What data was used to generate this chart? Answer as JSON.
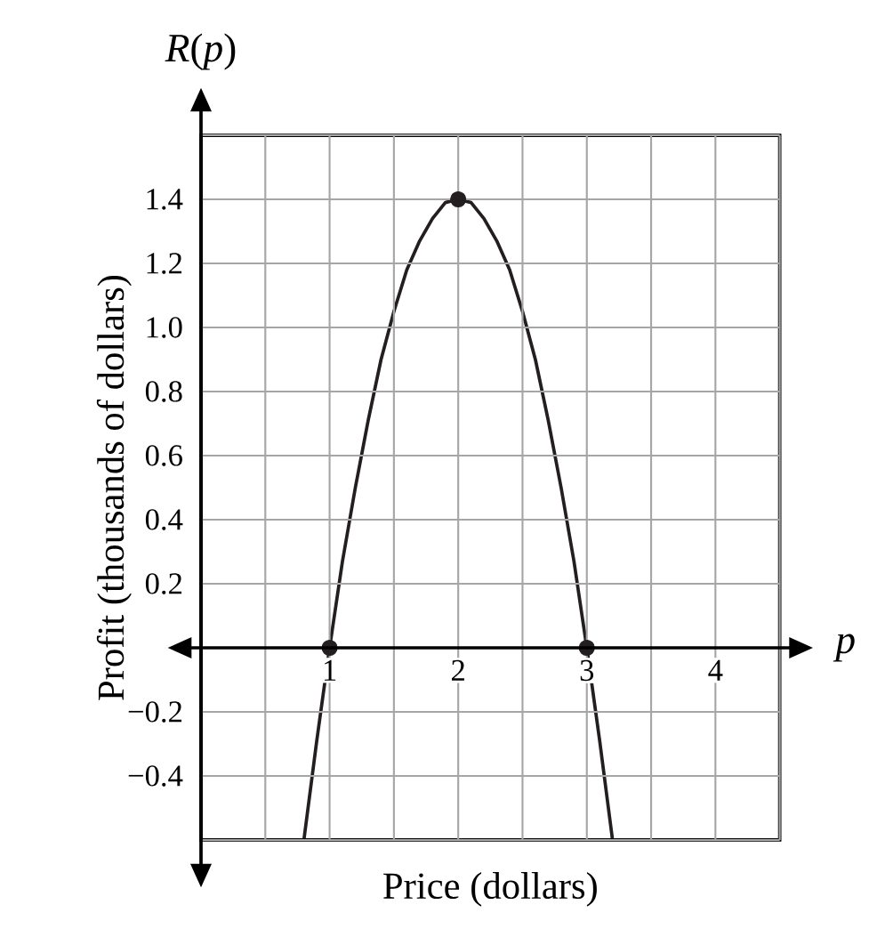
{
  "chart_data": {
    "type": "line",
    "xlabel": "Price (dollars)",
    "ylabel": "Profit (thousands of dollars)",
    "annotations": [
      "*R*(*p*)",
      "p"
    ],
    "xlim": [
      0,
      4.5
    ],
    "ylim": [
      -0.6,
      1.6
    ],
    "xticks": [
      {
        "value": 0,
        "label": null
      },
      {
        "value": 0.5,
        "label": null
      },
      1,
      {
        "value": 1.5,
        "label": null
      },
      2,
      {
        "value": 2.5,
        "label": null
      },
      3,
      {
        "value": 3.5,
        "label": null
      },
      4,
      {
        "value": 4.5,
        "label": null
      }
    ],
    "yticks": [
      {
        "value": -0.6,
        "label": null
      },
      {
        "value": -0.4,
        "label": "−0.4"
      },
      {
        "value": -0.2,
        "label": "−0.2"
      },
      0.2,
      0.4,
      0.6,
      0.8,
      "1.0",
      1.2,
      1.4,
      {
        "value": 1.6,
        "label": null
      }
    ],
    "grid": true,
    "series": [
      {
        "color": "#231f20",
        "marker": "none",
        "x": [
          0.8,
          0.9,
          1.0,
          1.1,
          1.2,
          1.3,
          1.4,
          1.5,
          1.6,
          1.7,
          1.8,
          1.9,
          2.0,
          2.1,
          2.2,
          2.3,
          2.4,
          2.5,
          2.6,
          2.7,
          2.8,
          2.9,
          3.0,
          3.1,
          3.2
        ],
        "values": [
          -0.6,
          -0.29,
          0,
          0.27,
          0.5,
          0.71,
          0.9,
          1.05,
          1.18,
          1.27,
          1.34,
          1.39,
          1.4,
          1.39,
          1.34,
          1.27,
          1.18,
          1.05,
          0.9,
          0.71,
          0.5,
          0.27,
          0,
          -0.29,
          -0.6
        ]
      },
      {
        "type": "scatter",
        "color": "#231f20",
        "marker": "circle",
        "x": [
          1,
          2,
          3
        ],
        "values": [
          0,
          1.4,
          0
        ]
      }
    ]
  }
}
